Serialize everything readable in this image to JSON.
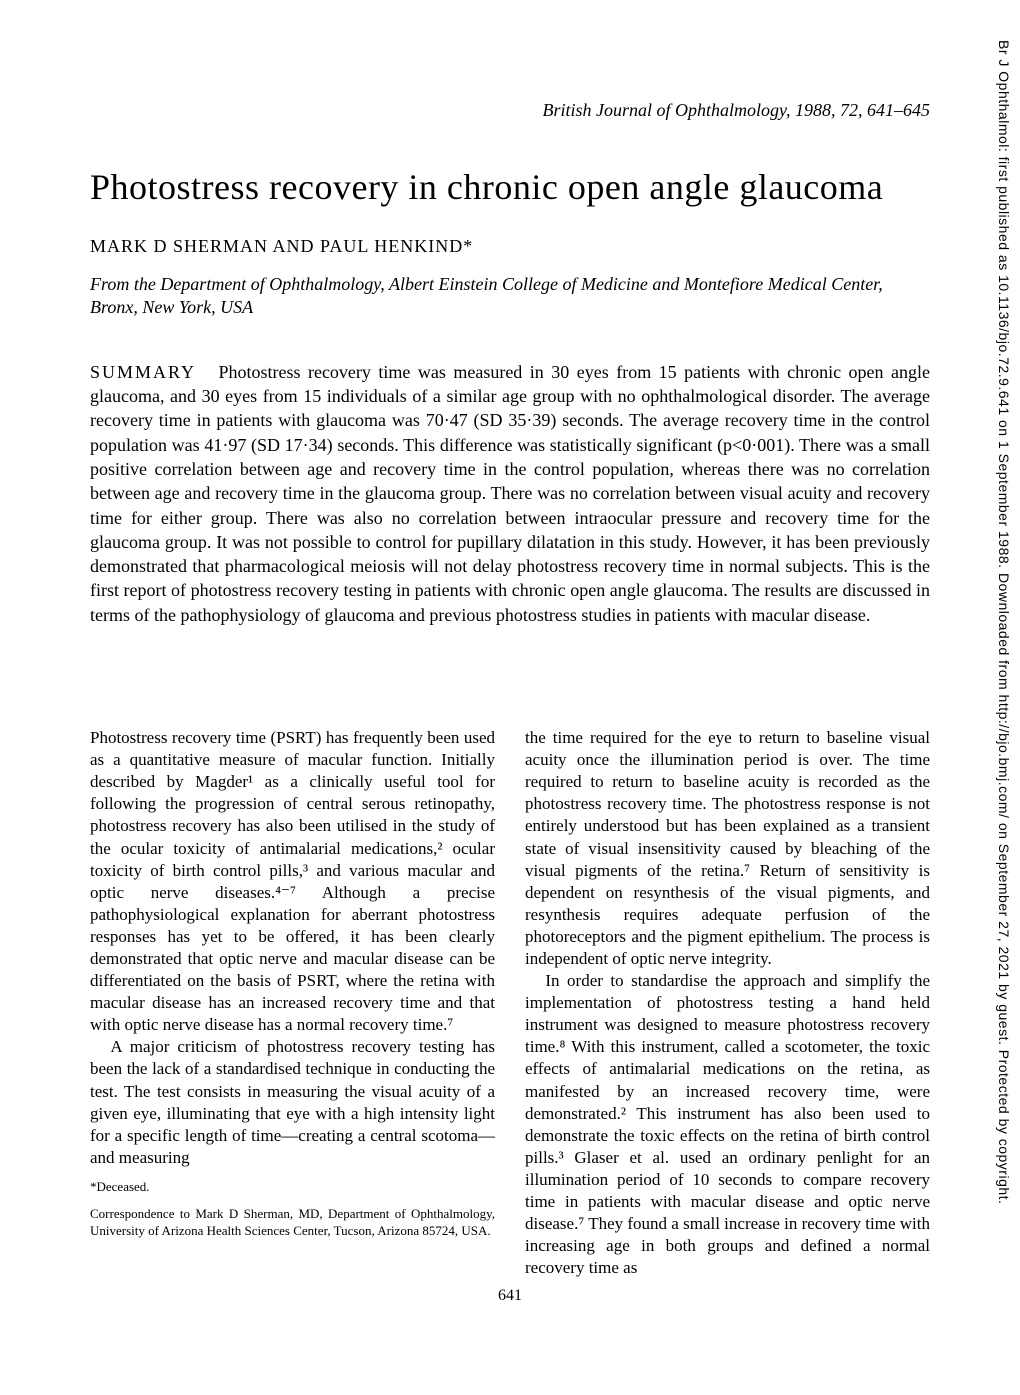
{
  "journal_ref": "British Journal of Ophthalmology, 1988, 72, 641–645",
  "title": "Photostress recovery in chronic open angle glaucoma",
  "authors": "MARK D SHERMAN AND PAUL HENKIND*",
  "affiliation": "From the Department of Ophthalmology, Albert Einstein College of Medicine and Montefiore Medical Center, Bronx, New York, USA",
  "summary_label": "SUMMARY",
  "summary_text": "Photostress recovery time was measured in 30 eyes from 15 patients with chronic open angle glaucoma, and 30 eyes from 15 individuals of a similar age group with no ophthalmological disorder. The average recovery time in patients with glaucoma was 70·47 (SD 35·39) seconds. The average recovery time in the control population was 41·97 (SD 17·34) seconds. This difference was statistically significant (p<0·001). There was a small positive correlation between age and recovery time in the control population, whereas there was no correlation between age and recovery time in the glaucoma group. There was no correlation between visual acuity and recovery time for either group. There was also no correlation between intraocular pressure and recovery time for the glaucoma group. It was not possible to control for pupillary dilatation in this study. However, it has been previously demonstrated that pharmacological meiosis will not delay photostress recovery time in normal subjects. This is the first report of photostress recovery testing in patients with chronic open angle glaucoma. The results are discussed in terms of the pathophysiology of glaucoma and previous photostress studies in patients with macular disease.",
  "col1_p1": "Photostress recovery time (PSRT) has frequently been used as a quantitative measure of macular function. Initially described by Magder¹ as a clinically useful tool for following the progression of central serous retinopathy, photostress recovery has also been utilised in the study of the ocular toxicity of antimalarial medications,² ocular toxicity of birth control pills,³ and various macular and optic nerve diseases.⁴⁻⁷ Although a precise pathophysiological explanation for aberrant photostress responses has yet to be offered, it has been clearly demonstrated that optic nerve and macular disease can be differentiated on the basis of PSRT, where the retina with macular disease has an increased recovery time and that with optic nerve disease has a normal recovery time.⁷",
  "col1_p2": "A major criticism of photostress recovery testing has been the lack of a standardised technique in conducting the test. The test consists in measuring the visual acuity of a given eye, illuminating that eye with a high intensity light for a specific length of time—creating a central scotoma—and measuring",
  "footnote_deceased": "*Deceased.",
  "footnote_correspondence": "Correspondence to Mark D Sherman, MD, Department of Ophthalmology, University of Arizona Health Sciences Center, Tucson, Arizona 85724, USA.",
  "col2_p1": "the time required for the eye to return to baseline visual acuity once the illumination period is over. The time required to return to baseline acuity is recorded as the photostress recovery time. The photostress response is not entirely understood but has been explained as a transient state of visual insensitivity caused by bleaching of the visual pigments of the retina.⁷ Return of sensitivity is dependent on resynthesis of the visual pigments, and resynthesis requires adequate perfusion of the photoreceptors and the pigment epithelium. The process is independent of optic nerve integrity.",
  "col2_p2": "In order to standardise the approach and simplify the implementation of photostress testing a hand held instrument was designed to measure photostress recovery time.⁸ With this instrument, called a scotometer, the toxic effects of antimalarial medications on the retina, as manifested by an increased recovery time, were demonstrated.² This instrument has also been used to demonstrate the toxic effects on the retina of birth control pills.³ Glaser et al. used an ordinary penlight for an illumination period of 10 seconds to compare recovery time in patients with macular disease and optic nerve disease.⁷ They found a small increase in recovery time with increasing age in both groups and defined a normal recovery time as",
  "page_number": "641",
  "side_text": "Br J Ophthalmol: first published as 10.1136/bjo.72.9.641 on 1 September 1988. Downloaded from http://bjo.bmj.com/ on September 27, 2021 by guest. Protected by copyright."
}
